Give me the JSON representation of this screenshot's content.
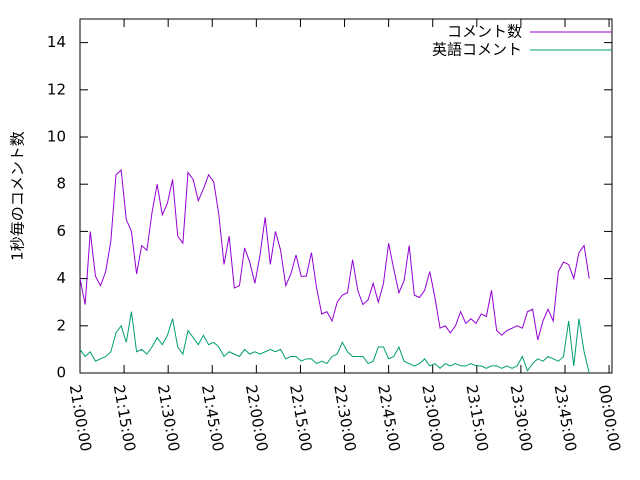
{
  "chart_data": {
    "type": "line",
    "ylabel": "1秒毎のコメント数",
    "xlim": [
      0,
      181
    ],
    "ylim": [
      0,
      15
    ],
    "yticks": [
      0,
      2,
      4,
      6,
      8,
      10,
      12,
      14
    ],
    "xticks": [
      {
        "value": 0,
        "label": "21:00:00"
      },
      {
        "value": 15,
        "label": "21:15:00"
      },
      {
        "value": 30,
        "label": "21:30:00"
      },
      {
        "value": 45,
        "label": "21:45:00"
      },
      {
        "value": 60,
        "label": "22:00:00"
      },
      {
        "value": 75,
        "label": "22:15:00"
      },
      {
        "value": 90,
        "label": "22:30:00"
      },
      {
        "value": 105,
        "label": "22:45:00"
      },
      {
        "value": 120,
        "label": "23:00:00"
      },
      {
        "value": 135,
        "label": "23:15:00"
      },
      {
        "value": 150,
        "label": "23:30:00"
      },
      {
        "value": 165,
        "label": "23:45:00"
      },
      {
        "value": 180,
        "label": "00:00:00"
      }
    ],
    "legend": "top-right",
    "x": [
      0,
      1.75,
      3.5,
      5.25,
      7,
      8.75,
      10.5,
      12.25,
      14,
      15.75,
      17.5,
      19.25,
      21,
      22.75,
      24.5,
      26.25,
      28,
      29.75,
      31.5,
      33.25,
      35,
      36.75,
      38.5,
      40.25,
      42,
      43.75,
      45.5,
      47.25,
      49,
      50.75,
      52.5,
      54.25,
      56,
      57.75,
      59.5,
      61.25,
      63,
      64.75,
      66.5,
      68.25,
      70,
      71.75,
      73.5,
      75.25,
      77,
      78.75,
      80.5,
      82.25,
      84,
      85.75,
      87.5,
      89.25,
      91,
      92.75,
      94.5,
      96.25,
      98,
      99.75,
      101.5,
      103.25,
      105,
      106.75,
      108.5,
      110.25,
      112,
      113.75,
      115.5,
      117.25,
      119,
      120.75,
      122.5,
      124.25,
      126,
      127.75,
      129.5,
      131.25,
      133,
      134.75,
      136.5,
      138.25,
      140,
      141.75,
      143.5,
      145.25,
      147,
      148.75,
      150.5,
      152.25,
      154,
      155.75,
      157.5,
      159.25,
      161,
      162.75,
      164.5,
      166.25,
      168,
      169.75,
      171.5,
      173.25
    ],
    "series": [
      {
        "name": "コメント数",
        "color": "#9400d3",
        "values": [
          4.0,
          2.9,
          6.0,
          4.1,
          3.7,
          4.3,
          5.6,
          8.4,
          8.6,
          6.5,
          6.0,
          4.2,
          5.4,
          5.2,
          6.8,
          8.0,
          6.7,
          7.2,
          8.2,
          5.8,
          5.5,
          8.5,
          8.2,
          7.3,
          7.8,
          8.4,
          8.1,
          6.7,
          4.6,
          5.8,
          3.6,
          3.7,
          5.3,
          4.7,
          3.8,
          5.0,
          6.6,
          4.6,
          6.0,
          5.2,
          3.7,
          4.2,
          5.0,
          4.1,
          4.1,
          5.1,
          3.6,
          2.5,
          2.6,
          2.2,
          3.0,
          3.3,
          3.4,
          4.8,
          3.5,
          2.9,
          3.1,
          3.8,
          3.0,
          3.8,
          5.5,
          4.4,
          3.4,
          3.9,
          5.4,
          3.3,
          3.2,
          3.5,
          4.3,
          3.2,
          1.9,
          2.0,
          1.7,
          2.0,
          2.6,
          2.1,
          2.3,
          2.1,
          2.5,
          2.4,
          3.5,
          1.8,
          1.6,
          1.8,
          1.9,
          2.0,
          1.9,
          2.6,
          2.7,
          1.4,
          2.2,
          2.7,
          2.2,
          4.3,
          4.7,
          4.6,
          4.0,
          5.1,
          5.4,
          4.0
        ]
      },
      {
        "name": "英語コメント",
        "color": "#009e73",
        "values": [
          1.0,
          0.7,
          0.9,
          0.5,
          0.6,
          0.7,
          0.9,
          1.7,
          2.0,
          1.3,
          2.6,
          0.9,
          1.0,
          0.8,
          1.1,
          1.5,
          1.2,
          1.6,
          2.3,
          1.1,
          0.8,
          1.8,
          1.5,
          1.2,
          1.6,
          1.2,
          1.3,
          1.1,
          0.7,
          0.9,
          0.8,
          0.7,
          1.0,
          0.8,
          0.9,
          0.8,
          0.9,
          1.0,
          0.9,
          1.0,
          0.6,
          0.7,
          0.7,
          0.5,
          0.6,
          0.6,
          0.4,
          0.5,
          0.4,
          0.7,
          0.8,
          1.3,
          0.9,
          0.7,
          0.7,
          0.7,
          0.4,
          0.5,
          1.1,
          1.1,
          0.6,
          0.7,
          1.1,
          0.5,
          0.4,
          0.3,
          0.4,
          0.6,
          0.3,
          0.4,
          0.2,
          0.4,
          0.3,
          0.4,
          0.3,
          0.3,
          0.4,
          0.3,
          0.3,
          0.2,
          0.3,
          0.3,
          0.2,
          0.3,
          0.2,
          0.3,
          0.7,
          0.1,
          0.4,
          0.6,
          0.5,
          0.7,
          0.6,
          0.5,
          0.7,
          2.2,
          0.3,
          2.3,
          0.9,
          0.0
        ]
      }
    ]
  }
}
